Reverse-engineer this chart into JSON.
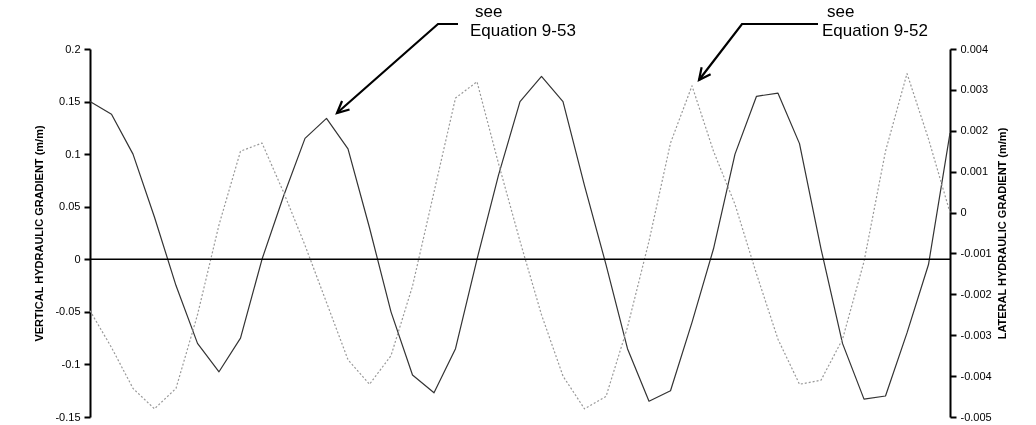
{
  "chart_data": {
    "type": "line",
    "categories": [
      null,
      null,
      null,
      null,
      null,
      null,
      null,
      null,
      null,
      null,
      null,
      null,
      null,
      null,
      null,
      null,
      null,
      null,
      null,
      null,
      null,
      null,
      null,
      null,
      null,
      null,
      null,
      null,
      null,
      null,
      null,
      null,
      null,
      null,
      null,
      null,
      null,
      null,
      null,
      null,
      null
    ],
    "series": [
      {
        "color": "#333333",
        "line_style": "solid",
        "values": [
          0.15,
          0.138,
          0.1,
          0.04,
          -0.025,
          -0.08,
          -0.107,
          -0.075,
          0.0,
          0.06,
          0.115,
          0.134,
          0.105,
          0.03,
          -0.05,
          -0.11,
          -0.127,
          -0.085,
          0.0,
          0.08,
          0.15,
          0.174,
          0.15,
          0.07,
          -0.005,
          -0.085,
          -0.135,
          -0.125,
          -0.06,
          0.01,
          0.1,
          0.155,
          0.158,
          0.11,
          0.01,
          -0.08,
          -0.133,
          -0.13,
          -0.07,
          -0.005,
          0.12
        ]
      },
      {
        "color": "#999999",
        "line_style": "dotted",
        "axis": "y2",
        "values": [
          -0.0024,
          -0.0033,
          -0.0043,
          -0.0048,
          -0.0043,
          -0.0025,
          -0.0003,
          0.0015,
          0.0017,
          0.0005,
          -0.0008,
          -0.0022,
          -0.0036,
          -0.0042,
          -0.0035,
          -0.0018,
          0.0005,
          0.0028,
          0.0032,
          0.0012,
          -0.0007,
          -0.0025,
          -0.004,
          -0.0048,
          -0.0045,
          -0.0028,
          -0.0007,
          0.0017,
          0.0031,
          0.0015,
          0.0002,
          -0.0015,
          -0.0031,
          -0.0042,
          -0.0041,
          -0.0031,
          -0.0012,
          0.0015,
          0.0034,
          0.0018,
          0.0
        ]
      }
    ],
    "ylabel": "VERTICAL HYDRAULIC GRADIENT (m/m)",
    "y2label": "LATERAL HYDRAULIC GRADIENT (m/m)",
    "ylim": [
      -0.15,
      0.2
    ],
    "yticks": [
      -0.15,
      -0.1,
      -0.05,
      0,
      0.05,
      0.1,
      0.15,
      0.2
    ],
    "y2lim": [
      -0.005,
      0.004
    ],
    "y2ticks": [
      -0.005,
      -0.004,
      -0.003,
      -0.002,
      -0.001,
      0,
      0.001,
      0.002,
      0.003,
      0.004
    ],
    "ref_lines": [
      {
        "axis": "y",
        "value": 0,
        "color": "#000000"
      }
    ],
    "annotations": [
      "see\nEquation 9-53",
      "see\nEquation 9-52"
    ]
  }
}
